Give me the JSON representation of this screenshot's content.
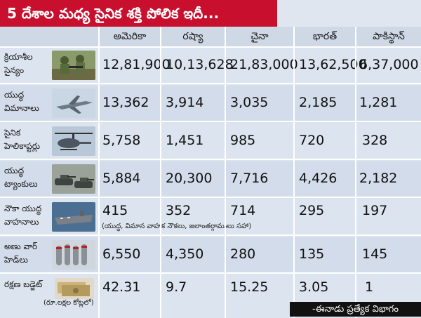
{
  "title": "5 దేశాల మధ్య సైనిక శక్తి పోలిక ఇదీ...",
  "columns": [
    "అమెరికా",
    "రష్యా",
    "చైనా",
    "భారత్",
    "పాకిస్థాన్"
  ],
  "rows": [
    {
      "label": "క్రియాశీల సైన్యం",
      "values": [
        "12,81,900",
        "10,13,628",
        "21,83,000",
        "13,62,500",
        "6,37,000"
      ]
    },
    {
      "label": "యుద్ధ విమానాలు",
      "values": [
        "13,362",
        "3,914",
        "3,035",
        "2,185",
        "1,281"
      ]
    },
    {
      "label": "సైనిక హెలికాప్టర్లు",
      "values": [
        "5,758",
        "1,451",
        "985",
        "720",
        "328"
      ]
    },
    {
      "label": "యుద్ధ ట్యాంకులు",
      "values": [
        "5,884",
        "20,300",
        "7,716",
        "4,426",
        "2,182"
      ]
    },
    {
      "label": "నౌకా యుద్ధ వాహనాలు",
      "values": [
        "415",
        "352",
        "714",
        "295",
        "197"
      ],
      "note": "(యుద్ధ, విమాన వాహక నౌకలు, జలాంతర్గాములు సహా)"
    },
    {
      "label": "అణు వార్ హెడ్‌లు",
      "values": [
        "6,550",
        "4,350",
        "280",
        "135",
        "145"
      ]
    },
    {
      "label": "రక్షణ బడ్జెట్",
      "values": [
        "42.31",
        "9.7",
        "15.25",
        "3.05",
        "1"
      ],
      "unit_note": "(రూ.లక్షల కోట్లలో)"
    }
  ],
  "source": "-ఈనాడు ప్రత్యేక విభాగం",
  "colors": {
    "title_bg": "#c8102e",
    "source_bg": "#111111"
  }
}
